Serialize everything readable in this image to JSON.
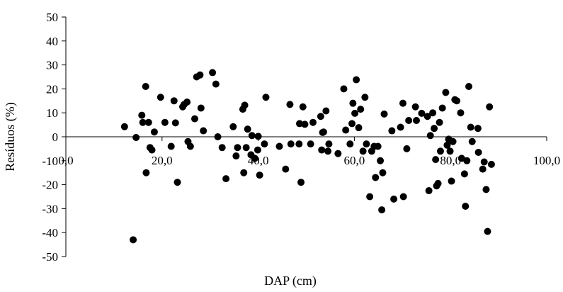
{
  "chart_data": {
    "type": "scatter",
    "title": "",
    "xlabel": "DAP (cm)",
    "ylabel": "Resíduos (%)",
    "xlim": [
      0,
      100
    ],
    "ylim": [
      -50,
      50
    ],
    "x_ticks": [
      0,
      20,
      40,
      60,
      80,
      100
    ],
    "x_tick_labels": [
      "0,0",
      "20,0",
      "40,0",
      "60,0",
      "80,0",
      "100,0"
    ],
    "y_ticks": [
      -50,
      -40,
      -30,
      -20,
      -10,
      0,
      10,
      20,
      30,
      40,
      50
    ],
    "y_tick_labels": [
      "-50",
      "-40",
      "-30",
      "-20",
      "-10",
      "0",
      "10",
      "20",
      "30",
      "40",
      "50"
    ],
    "grid": false,
    "legend": "none",
    "marker_color": "#000000",
    "points": [
      [
        12.2,
        4.2
      ],
      [
        14.0,
        -43.0
      ],
      [
        14.6,
        -0.3
      ],
      [
        15.8,
        9.0
      ],
      [
        16.0,
        6.0
      ],
      [
        16.6,
        21.0
      ],
      [
        16.7,
        -15.0
      ],
      [
        17.2,
        6.0
      ],
      [
        17.5,
        -4.5
      ],
      [
        17.9,
        -5.5
      ],
      [
        18.4,
        2.0
      ],
      [
        19.7,
        16.5
      ],
      [
        20.6,
        6.0
      ],
      [
        21.9,
        -4.0
      ],
      [
        22.5,
        15.0
      ],
      [
        22.8,
        5.8
      ],
      [
        23.2,
        -19.0
      ],
      [
        24.3,
        12.5
      ],
      [
        24.6,
        13.5
      ],
      [
        25.2,
        14.5
      ],
      [
        25.4,
        -2.0
      ],
      [
        25.9,
        -4.0
      ],
      [
        26.8,
        7.5
      ],
      [
        27.2,
        25.0
      ],
      [
        27.9,
        25.8
      ],
      [
        28.1,
        12.0
      ],
      [
        28.6,
        2.5
      ],
      [
        30.5,
        26.8
      ],
      [
        31.2,
        22.0
      ],
      [
        31.6,
        0.0
      ],
      [
        32.5,
        -4.5
      ],
      [
        33.3,
        -17.5
      ],
      [
        34.8,
        4.2
      ],
      [
        35.4,
        -8.0
      ],
      [
        35.7,
        -4.5
      ],
      [
        36.8,
        11.5
      ],
      [
        37.0,
        -15.0
      ],
      [
        37.2,
        13.2
      ],
      [
        37.5,
        -4.5
      ],
      [
        37.8,
        3.2
      ],
      [
        38.5,
        -7.5
      ],
      [
        38.7,
        0.5
      ],
      [
        39.3,
        -9.0
      ],
      [
        39.9,
        -5.5
      ],
      [
        40.0,
        0.2
      ],
      [
        40.3,
        -16.0
      ],
      [
        41.3,
        -3.0
      ],
      [
        41.6,
        16.5
      ],
      [
        44.4,
        -4.0
      ],
      [
        45.7,
        -13.5
      ],
      [
        46.6,
        13.5
      ],
      [
        46.8,
        -3.0
      ],
      [
        48.5,
        -3.0
      ],
      [
        48.6,
        5.5
      ],
      [
        48.9,
        -19.0
      ],
      [
        49.3,
        12.5
      ],
      [
        49.7,
        5.2
      ],
      [
        50.9,
        -3.0
      ],
      [
        51.4,
        6.0
      ],
      [
        53.0,
        8.5
      ],
      [
        53.2,
        -5.5
      ],
      [
        53.4,
        1.8
      ],
      [
        53.6,
        2.0
      ],
      [
        54.1,
        10.8
      ],
      [
        54.5,
        -6.0
      ],
      [
        54.7,
        -3.0
      ],
      [
        56.6,
        -7.0
      ],
      [
        57.8,
        20.0
      ],
      [
        58.2,
        2.8
      ],
      [
        59.1,
        -3.0
      ],
      [
        59.5,
        5.5
      ],
      [
        59.7,
        14.0
      ],
      [
        60.1,
        9.8
      ],
      [
        60.4,
        23.8
      ],
      [
        60.9,
        3.8
      ],
      [
        61.3,
        11.5
      ],
      [
        61.8,
        -6.0
      ],
      [
        62.2,
        16.5
      ],
      [
        62.5,
        -3.0
      ],
      [
        63.2,
        -25.0
      ],
      [
        63.6,
        -6.0
      ],
      [
        64.1,
        -4.0
      ],
      [
        64.4,
        -17.0
      ],
      [
        64.9,
        -4.0
      ],
      [
        65.4,
        -10.0
      ],
      [
        65.7,
        -30.5
      ],
      [
        65.9,
        -15.0
      ],
      [
        66.2,
        9.5
      ],
      [
        67.8,
        2.5
      ],
      [
        68.2,
        -26.0
      ],
      [
        69.6,
        4.0
      ],
      [
        70.1,
        14.0
      ],
      [
        70.2,
        -25.0
      ],
      [
        70.9,
        -5.0
      ],
      [
        71.3,
        6.8
      ],
      [
        72.7,
        12.5
      ],
      [
        72.9,
        6.8
      ],
      [
        74.0,
        9.8
      ],
      [
        75.2,
        8.5
      ],
      [
        75.5,
        -22.5
      ],
      [
        75.8,
        0.5
      ],
      [
        76.3,
        10.0
      ],
      [
        76.6,
        3.5
      ],
      [
        76.9,
        -9.5
      ],
      [
        77.1,
        -20.5
      ],
      [
        77.4,
        -19.5
      ],
      [
        77.7,
        6.0
      ],
      [
        77.9,
        -6.0
      ],
      [
        78.3,
        12.0
      ],
      [
        79.0,
        18.5
      ],
      [
        79.3,
        -3.5
      ],
      [
        79.6,
        -1.0
      ],
      [
        79.9,
        -6.0
      ],
      [
        80.2,
        -18.5
      ],
      [
        80.5,
        -2.0
      ],
      [
        80.9,
        15.5
      ],
      [
        81.3,
        15.0
      ],
      [
        82.1,
        10.0
      ],
      [
        82.3,
        -9.0
      ],
      [
        82.9,
        -15.5
      ],
      [
        83.1,
        -29.0
      ],
      [
        83.4,
        -10.0
      ],
      [
        83.8,
        21.0
      ],
      [
        84.2,
        4.0
      ],
      [
        84.5,
        -2.0
      ],
      [
        85.7,
        3.5
      ],
      [
        85.8,
        -6.5
      ],
      [
        86.7,
        -13.5
      ],
      [
        87.0,
        -10.5
      ],
      [
        87.4,
        -22.0
      ],
      [
        87.7,
        -39.5
      ],
      [
        88.1,
        12.5
      ],
      [
        88.5,
        -11.5
      ]
    ]
  }
}
